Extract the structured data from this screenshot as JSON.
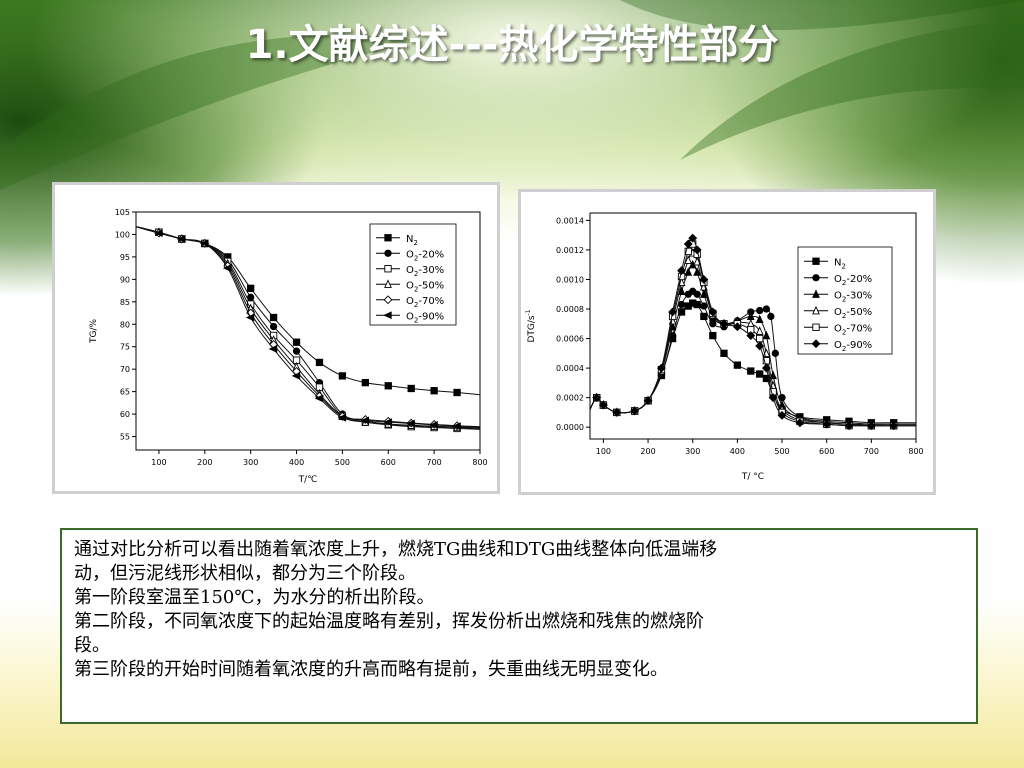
{
  "slide": {
    "title": "1.文献综述---热化学特性部分",
    "body_lines": [
      "通过对比分析可以看出随着氧浓度上升，燃烧TG曲线和DTG曲线整体向低温端移",
      "动，但污泥线形状相似，都分为三个阶段。",
      "第一阶段室温至150℃，为水分的析出阶段。",
      "第二阶段，不同氧浓度下的起始温度略有差别，挥发份析出燃烧和残焦的燃烧阶",
      "段。",
      "第三阶段的开始时间随着氧浓度的升高而略有提前，失重曲线无明显变化。"
    ],
    "colors": {
      "title": "#ffffff",
      "border": "#3b6b2a",
      "background_green": "#3d7a22"
    }
  },
  "chart_data": [
    {
      "type": "line",
      "xlabel": "T/℃",
      "ylabel": "TG/%",
      "xlim": [
        50,
        800
      ],
      "ylim": [
        52,
        105
      ],
      "xticks": [
        100,
        200,
        300,
        400,
        500,
        600,
        700,
        800
      ],
      "yticks": [
        55,
        60,
        65,
        70,
        75,
        80,
        85,
        90,
        95,
        100,
        105
      ],
      "grid": false,
      "legend": "top-right",
      "series": [
        {
          "name": "N2",
          "label_main": "N",
          "label_sub": "2",
          "marker": "square-filled",
          "x": [
            40,
            100,
            150,
            200,
            250,
            300,
            350,
            400,
            450,
            500,
            550,
            600,
            650,
            700,
            750,
            800
          ],
          "y": [
            102,
            100.5,
            99,
            98,
            95,
            88,
            81.5,
            76,
            71.5,
            68.5,
            67,
            66.3,
            65.7,
            65.2,
            64.8,
            64.3
          ]
        },
        {
          "name": "O2-20%",
          "label_main": "O",
          "label_sub": "2",
          "label_rest": "-20%",
          "marker": "circle-filled",
          "x": [
            40,
            100,
            150,
            200,
            250,
            300,
            350,
            400,
            450,
            500,
            550,
            600,
            650,
            700,
            750,
            800
          ],
          "y": [
            102,
            100.5,
            99,
            98,
            94.5,
            86,
            79.5,
            74,
            67,
            60,
            58.5,
            57.8,
            57.4,
            57.2,
            57,
            56.8
          ]
        },
        {
          "name": "O2-30%",
          "label_main": "O",
          "label_sub": "2",
          "label_rest": "-30%",
          "marker": "square-open",
          "x": [
            40,
            100,
            150,
            200,
            250,
            300,
            350,
            400,
            450,
            500,
            550,
            600,
            650,
            700,
            750,
            800
          ],
          "y": [
            102,
            100.5,
            99,
            98,
            94,
            84.5,
            77.5,
            72,
            66,
            59.5,
            58.2,
            57.6,
            57.2,
            57,
            56.8,
            56.6
          ]
        },
        {
          "name": "O2-50%",
          "label_main": "O",
          "label_sub": "2",
          "label_rest": "-50%",
          "marker": "triangle-open",
          "x": [
            40,
            100,
            150,
            200,
            250,
            300,
            350,
            400,
            450,
            500,
            550,
            600,
            650,
            700,
            750,
            800
          ],
          "y": [
            102,
            100.5,
            99,
            98,
            93.5,
            83.5,
            76.5,
            70.5,
            64.5,
            59.5,
            58.2,
            57.8,
            57.5,
            57.3,
            57.1,
            57
          ]
        },
        {
          "name": "O2-70%",
          "label_main": "O",
          "label_sub": "2",
          "label_rest": "-70%",
          "marker": "diamond-open",
          "x": [
            40,
            100,
            150,
            200,
            250,
            300,
            350,
            400,
            450,
            500,
            550,
            600,
            650,
            700,
            750,
            800
          ],
          "y": [
            102,
            100.3,
            99,
            98,
            93,
            82.5,
            75.5,
            69.5,
            64,
            59.5,
            58.8,
            58.4,
            58,
            57.7,
            57.4,
            57.2
          ]
        },
        {
          "name": "O2-90%",
          "label_main": "O",
          "label_sub": "2",
          "label_rest": "-90%",
          "marker": "triangle-left-filled",
          "x": [
            40,
            100,
            150,
            200,
            250,
            300,
            350,
            400,
            450,
            500,
            550,
            600,
            650,
            700,
            750,
            800
          ],
          "y": [
            102,
            100.3,
            99,
            98,
            92.5,
            81.5,
            74.5,
            68.5,
            63.5,
            59.2,
            58.6,
            58.2,
            57.9,
            57.6,
            57.3,
            57.1
          ]
        }
      ]
    },
    {
      "type": "line",
      "xlabel": "T/ °C",
      "ylabel": "DTG/s",
      "ylabel_sup": "-1",
      "xlim": [
        70,
        800
      ],
      "ylim": [
        -8e-05,
        0.00145
      ],
      "xticks": [
        100,
        200,
        300,
        400,
        500,
        600,
        700,
        800
      ],
      "yticks": [
        0.0,
        0.0002,
        0.0004,
        0.0006,
        0.0008,
        0.001,
        0.0012,
        0.0014
      ],
      "ytick_labels": [
        "0.0000",
        "0.0002",
        "0.0004",
        "0.0006",
        "0.0008",
        "0.0010",
        "0.0012",
        "0.0014"
      ],
      "grid": false,
      "legend": "top-right",
      "series": [
        {
          "name": "N2",
          "label_main": "N",
          "label_sub": "2",
          "marker": "square-filled",
          "x": [
            70,
            85,
            100,
            130,
            170,
            200,
            230,
            255,
            275,
            290,
            300,
            310,
            325,
            345,
            370,
            400,
            430,
            450,
            465,
            480,
            500,
            540,
            600,
            650,
            700,
            750,
            800
          ],
          "y": [
            0.00012,
            0.0002,
            0.00015,
            0.0001,
            0.00011,
            0.00018,
            0.00035,
            0.0006,
            0.00078,
            0.00082,
            0.00084,
            0.00083,
            0.00075,
            0.00062,
            0.0005,
            0.00042,
            0.00038,
            0.00036,
            0.00033,
            0.00022,
            0.00012,
            7e-05,
            5e-05,
            4e-05,
            3e-05,
            3e-05,
            3e-05
          ]
        },
        {
          "name": "O2-20%",
          "label_main": "O",
          "label_sub": "2",
          "label_rest": "-20%",
          "marker": "circle-filled",
          "x": [
            70,
            85,
            100,
            130,
            170,
            200,
            230,
            255,
            275,
            290,
            300,
            310,
            325,
            345,
            370,
            400,
            430,
            450,
            465,
            475,
            485,
            500,
            540,
            600,
            650,
            700,
            750,
            800
          ],
          "y": [
            0.00012,
            0.0002,
            0.00015,
            0.0001,
            0.00011,
            0.00018,
            0.00035,
            0.00062,
            0.00083,
            0.0009,
            0.00092,
            0.0009,
            0.00082,
            0.0007,
            0.00068,
            0.00072,
            0.00078,
            0.00079,
            0.0008,
            0.00075,
            0.0005,
            0.0002,
            7e-05,
            4e-05,
            3e-05,
            2e-05,
            2e-05,
            2e-05
          ]
        },
        {
          "name": "O2-30%",
          "label_main": "O",
          "label_sub": "2",
          "label_rest": "-30%",
          "marker": "triangle-filled",
          "x": [
            70,
            85,
            100,
            130,
            170,
            200,
            230,
            255,
            275,
            290,
            300,
            310,
            325,
            345,
            370,
            400,
            430,
            450,
            465,
            480,
            500,
            540,
            600,
            650,
            700,
            750,
            800
          ],
          "y": [
            0.00012,
            0.0002,
            0.00015,
            0.0001,
            0.00011,
            0.00018,
            0.00037,
            0.00068,
            0.00092,
            0.00105,
            0.0011,
            0.00105,
            0.0009,
            0.00074,
            0.0007,
            0.00072,
            0.00075,
            0.00073,
            0.00062,
            0.00035,
            0.00015,
            6e-05,
            3e-05,
            2e-05,
            2e-05,
            2e-05,
            2e-05
          ]
        },
        {
          "name": "O2-50%",
          "label_main": "O",
          "label_sub": "2",
          "label_rest": "-50%",
          "marker": "triangle-open",
          "x": [
            70,
            85,
            100,
            130,
            170,
            200,
            230,
            255,
            275,
            290,
            300,
            310,
            325,
            345,
            370,
            400,
            430,
            450,
            465,
            480,
            500,
            540,
            600,
            650,
            700,
            750,
            800
          ],
          "y": [
            0.00012,
            0.0002,
            0.00015,
            0.0001,
            0.00011,
            0.00018,
            0.00038,
            0.00072,
            0.00098,
            0.00113,
            0.00118,
            0.00112,
            0.00095,
            0.00076,
            0.0007,
            0.00071,
            0.0007,
            0.00065,
            0.0005,
            0.00028,
            0.00012,
            5e-05,
            3e-05,
            2e-05,
            1e-05,
            1e-05,
            1e-05
          ]
        },
        {
          "name": "O2-70%",
          "label_main": "O",
          "label_sub": "2",
          "label_rest": "-70%",
          "marker": "square-open",
          "x": [
            70,
            85,
            100,
            130,
            170,
            200,
            230,
            255,
            275,
            290,
            300,
            310,
            325,
            345,
            370,
            400,
            430,
            450,
            465,
            480,
            500,
            540,
            600,
            650,
            700,
            750,
            800
          ],
          "y": [
            0.00012,
            0.0002,
            0.00015,
            0.0001,
            0.00011,
            0.00018,
            0.00039,
            0.00075,
            0.00102,
            0.00119,
            0.00124,
            0.00117,
            0.00098,
            0.00077,
            0.0007,
            0.0007,
            0.00066,
            0.0006,
            0.00045,
            0.00024,
            0.0001,
            4e-05,
            2e-05,
            1e-05,
            1e-05,
            1e-05,
            1e-05
          ]
        },
        {
          "name": "O2-90%",
          "label_main": "O",
          "label_sub": "2",
          "label_rest": "-90%",
          "marker": "diamond-filled",
          "x": [
            70,
            85,
            100,
            130,
            170,
            200,
            230,
            255,
            275,
            290,
            300,
            310,
            325,
            345,
            370,
            400,
            430,
            450,
            465,
            480,
            500,
            540,
            600,
            650,
            700,
            750,
            800
          ],
          "y": [
            0.00012,
            0.0002,
            0.00015,
            0.0001,
            0.00011,
            0.00018,
            0.0004,
            0.00078,
            0.00106,
            0.00124,
            0.00128,
            0.0012,
            0.001,
            0.00078,
            0.0007,
            0.00068,
            0.00062,
            0.00055,
            0.0004,
            0.0002,
            8e-05,
            3e-05,
            2e-05,
            1e-05,
            1e-05,
            1e-05,
            1e-05
          ]
        }
      ]
    }
  ]
}
